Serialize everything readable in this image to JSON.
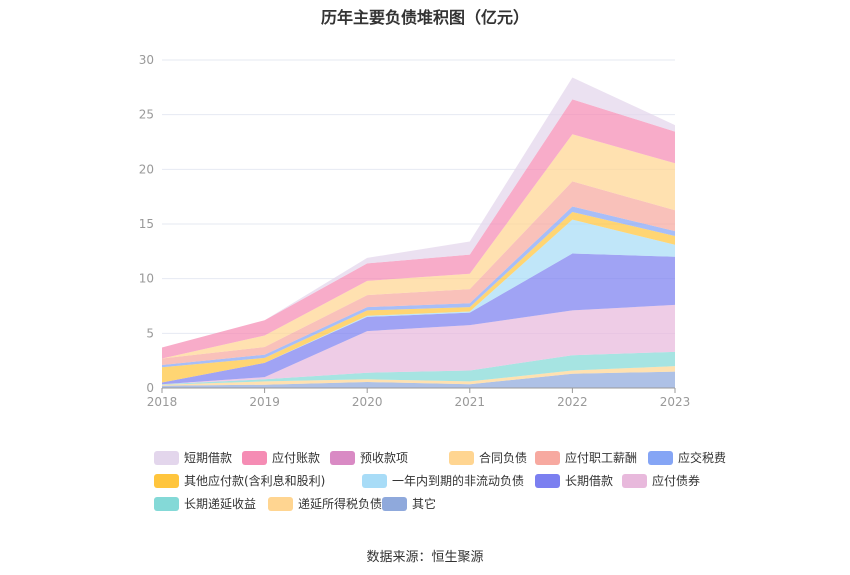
{
  "chart_data": {
    "type": "area",
    "stacked": true,
    "title": "历年主要负债堆积图（亿元）",
    "x": [
      "2018",
      "2019",
      "2020",
      "2021",
      "2022",
      "2023"
    ],
    "ylim": [
      0,
      30
    ],
    "yticks": [
      0,
      5,
      10,
      15,
      20,
      25,
      30
    ],
    "grid": true,
    "legend_position": "bottom",
    "series": [
      {
        "name": "其它",
        "color": "#8fa9dc",
        "values": [
          0.2,
          0.3,
          0.55,
          0.35,
          1.3,
          1.5
        ]
      },
      {
        "name": "递延所得税负债",
        "color": "#ffd591",
        "values": [
          0.1,
          0.3,
          0.25,
          0.25,
          0.3,
          0.5
        ]
      },
      {
        "name": "长期递延收益",
        "color": "#84d9d7",
        "values": [
          0.05,
          0.2,
          0.6,
          1.0,
          1.4,
          1.3
        ]
      },
      {
        "name": "应付债券",
        "color": "#e8b9dc",
        "values": [
          0.0,
          0.2,
          3.8,
          4.15,
          4.1,
          4.3
        ]
      },
      {
        "name": "长期借款",
        "color": "#7b7ff0",
        "values": [
          0.15,
          1.3,
          1.3,
          1.15,
          5.2,
          4.4
        ]
      },
      {
        "name": "一年内到期的非流动负债",
        "color": "#a8dcf7",
        "values": [
          0.0,
          0.0,
          0.1,
          0.1,
          3.1,
          1.1
        ]
      },
      {
        "name": "其他应付款(含利息和股利)",
        "color": "#ffc53d",
        "values": [
          1.4,
          0.45,
          0.5,
          0.4,
          0.7,
          0.8
        ]
      },
      {
        "name": "应交税费",
        "color": "#85a5f5",
        "values": [
          0.2,
          0.3,
          0.3,
          0.35,
          0.5,
          0.45
        ]
      },
      {
        "name": "应付职工薪酬",
        "color": "#f7a9a0",
        "values": [
          0.6,
          0.7,
          1.1,
          1.3,
          2.3,
          1.9
        ]
      },
      {
        "name": "合同负债",
        "color": "#ffd591",
        "values": [
          0.0,
          1.05,
          1.3,
          1.4,
          4.3,
          4.3
        ]
      },
      {
        "name": "预收款项",
        "color": "#d98ac4",
        "values": [
          0.0,
          0.0,
          0.0,
          0.0,
          0.0,
          0.0
        ]
      },
      {
        "name": "应付账款",
        "color": "#f58cb4",
        "values": [
          1.0,
          1.4,
          1.6,
          1.75,
          3.2,
          2.9
        ]
      },
      {
        "name": "短期借款",
        "color": "#e3d6ec",
        "values": [
          0.0,
          0.0,
          0.5,
          1.2,
          2.0,
          0.6
        ]
      }
    ],
    "legend_order": [
      "短期借款",
      "应付账款",
      "预收款项",
      "合同负债",
      "应付职工薪酬",
      "应交税费",
      "其他应付款(含利息和股利)",
      "一年内到期的非流动负债",
      "长期借款",
      "应付债券",
      "长期递延收益",
      "递延所得税负债",
      "其它"
    ]
  },
  "source_text": "数据来源：恒生聚源"
}
